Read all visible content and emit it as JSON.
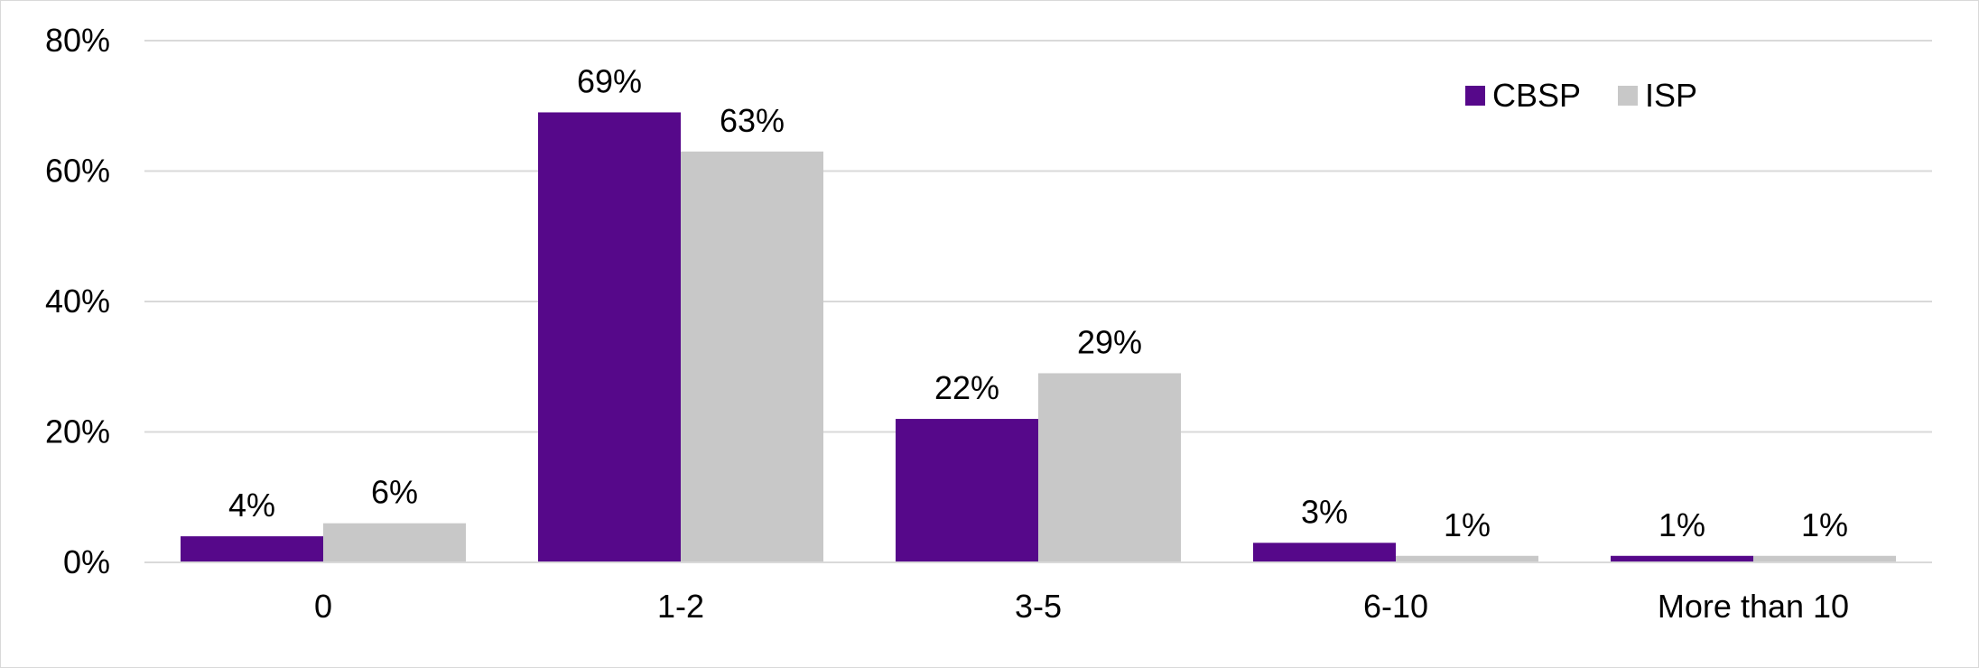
{
  "chart_data": {
    "type": "bar",
    "title": "",
    "xlabel": "",
    "ylabel": "",
    "categories": [
      "0",
      "1-2",
      "3-5",
      "6-10",
      "More than 10"
    ],
    "series": [
      {
        "name": "CBSP",
        "color": "#56088a",
        "values": [
          4,
          69,
          22,
          3,
          1
        ],
        "labels": [
          "4%",
          "69%",
          "22%",
          "3%",
          "1%"
        ]
      },
      {
        "name": "ISP",
        "color": "#c8c8c8",
        "values": [
          6,
          63,
          29,
          1,
          1
        ],
        "labels": [
          "6%",
          "63%",
          "29%",
          "1%",
          "1%"
        ]
      }
    ],
    "ylim": [
      0,
      80
    ],
    "yticks": [
      0,
      20,
      40,
      60,
      80
    ],
    "ytick_labels": [
      "0%",
      "20%",
      "40%",
      "60%",
      "80%"
    ],
    "grid": true,
    "legend_position": "top-right",
    "colors": {
      "grid": "#d9d9d9",
      "axis": "#d9d9d9",
      "frame": "#d9d9d9"
    }
  }
}
